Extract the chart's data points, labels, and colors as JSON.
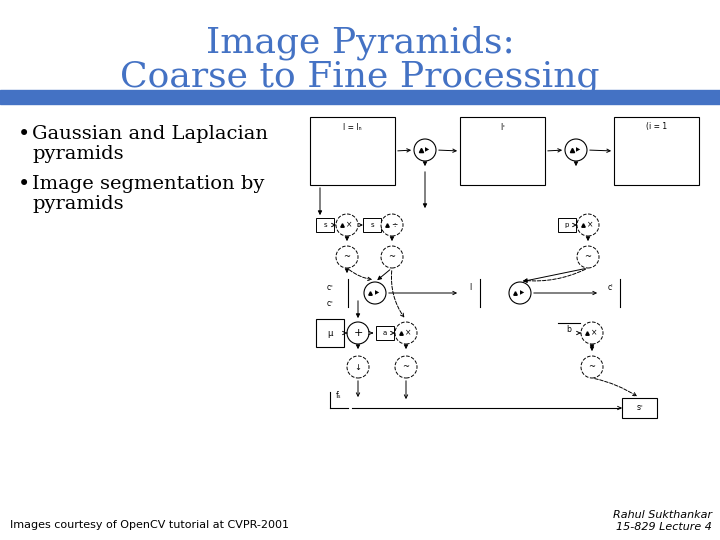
{
  "title_line1": "Image Pyramids:",
  "title_line2": "Coarse to Fine Processing",
  "title_color": "#4472C4",
  "title_fontsize": 26,
  "bullet1_line1": "Gaussian and Laplacian",
  "bullet1_line2": "pyramids",
  "bullet2_line1": "Image segmentation by",
  "bullet2_line2": "pyramids",
  "bullet_fontsize": 14,
  "footer_left": "Images courtesy of OpenCV tutorial at CVPR-2001",
  "footer_right_line1": "Rahul Sukthankar",
  "footer_right_line2": "15-829 Lecture 4",
  "footer_fontsize": 8,
  "divider_color": "#4472C4",
  "bg_color": "#FFFFFF"
}
